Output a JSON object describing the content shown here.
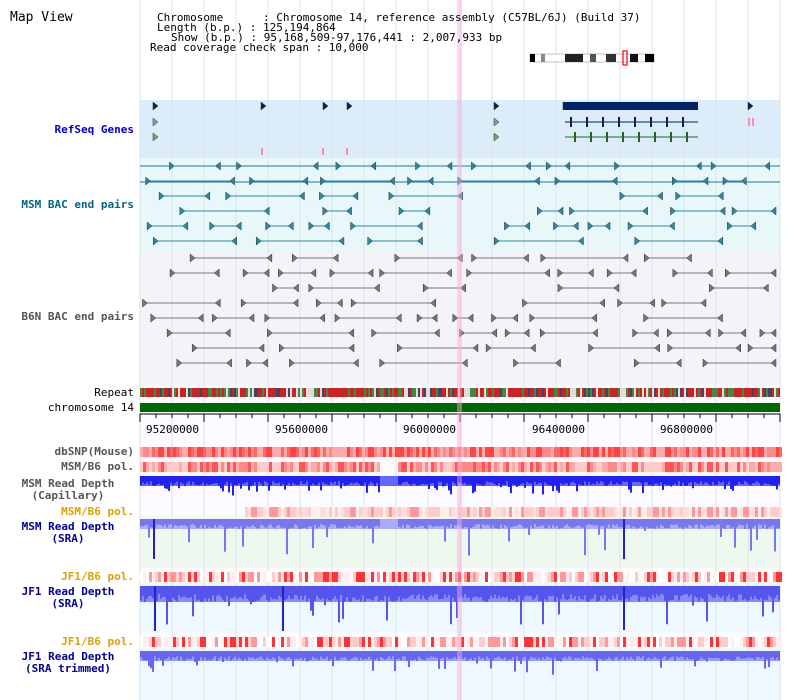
{
  "view": {
    "title": "Map View",
    "info": {
      "chromosome": "Chromosome      : Chromosome 14, reference assembly (C57BL/6J) (Build 37)",
      "length": "Length (b.p.) : 125,194,864",
      "show": "Show (b.p.) : 95,168,509-97,176,441 : 2,007,933 bp",
      "coverage": "Read coverage check span : 10,000"
    }
  },
  "tracks": {
    "refseq": "RefSeq Genes",
    "msm_bac": "MSM BAC end pairs",
    "b6n_bac": "B6N BAC end pairs",
    "repeat": "Repeat",
    "chromosome": "chromosome 14",
    "dbsnp": "dbSNP(Mouse)",
    "msm_b6_pol": "MSM/B6 pol.",
    "msm_depth_cap": "MSM Read Depth\n(Capillary)",
    "msm_b6_pol2": "MSM/B6 pol.",
    "msm_depth_sra": "MSM Read Depth\n(SRA)",
    "jf1_b6_pol": "JF1/B6 pol.",
    "jf1_depth_sra": "JF1 Read Depth\n(SRA)",
    "jf1_b6_pol2": "JF1/B6 pol.",
    "jf1_depth_trim": "JF1 Read Depth\n(SRA trimmed)"
  },
  "axis": {
    "ticks": [
      "95200000",
      "95600000",
      "96000000",
      "96400000",
      "96800000"
    ]
  },
  "colors": {
    "refseq_label": "#0000cc",
    "msm_bac_label": "#006688",
    "b6n_label": "#555555",
    "msm_depth_label": "#000099",
    "pol_label": "#e0a000",
    "dbsnp_label": "#555555",
    "chromosome_bar": "#006600",
    "highlight": "#ffaadd"
  }
}
